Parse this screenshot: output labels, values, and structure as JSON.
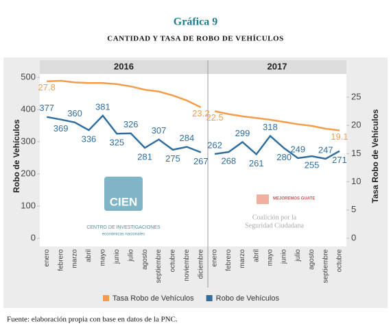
{
  "chart_data": {
    "type": "line",
    "title": "Gráfica 9",
    "subtitle": "CANTIDAD Y TASA DE ROBO DE VEHÍCULOS",
    "ylabel": "Robo de Vehículos",
    "y2label": "Tasa Robo de Vehículos",
    "ylim": [
      0,
      500
    ],
    "yticks": [
      0,
      100,
      200,
      300,
      400,
      500
    ],
    "y2lim": [
      0,
      28.5
    ],
    "y2ticks": [
      0,
      5,
      10,
      15,
      20,
      25
    ],
    "panels": [
      {
        "title": "2016",
        "categories": [
          "enero",
          "febrero",
          "marzo",
          "abril",
          "mayo",
          "junio",
          "julio",
          "agosto",
          "septiembre",
          "octubre",
          "noviembre",
          "diciembre"
        ],
        "series": [
          {
            "name": "Tasa Robo de Vehículos",
            "color": "#f39c4a",
            "axis": "y2",
            "values": [
              27.8,
              27.9,
              27.6,
              27.5,
              27.5,
              27.3,
              26.9,
              26.3,
              26.0,
              25.3,
              24.4,
              23.2
            ],
            "value_labels": [
              "27.8",
              null,
              null,
              null,
              null,
              null,
              null,
              null,
              null,
              null,
              null,
              "23.2"
            ]
          },
          {
            "name": "Robo de Vehículos",
            "color": "#2f6e9e",
            "values": [
              377,
              369,
              360,
              336,
              381,
              325,
              326,
              281,
              307,
              275,
              284,
              267
            ]
          }
        ]
      },
      {
        "title": "2017",
        "categories": [
          "enero",
          "febrero",
          "marzo",
          "abril",
          "mayo",
          "junio",
          "julio",
          "agosto",
          "septiembre",
          "octubre"
        ],
        "series": [
          {
            "name": "Tasa Robo de Vehículos",
            "color": "#f39c4a",
            "axis": "y2",
            "values": [
              22.5,
              22.0,
              21.6,
              21.3,
              21.0,
              20.6,
              20.2,
              19.9,
              19.4,
              19.1
            ],
            "value_labels": [
              "22.5",
              null,
              null,
              null,
              null,
              null,
              null,
              null,
              null,
              "19.1"
            ]
          },
          {
            "name": "Robo de Vehículos",
            "color": "#2f6e9e",
            "values": [
              262,
              268,
              299,
              261,
              318,
              280,
              249,
              255,
              247,
              271
            ]
          }
        ]
      }
    ]
  },
  "logos": {
    "cien": "CIEN",
    "cien_line1": "CENTRO DE INVESTIGACIONES",
    "cien_line2": "económicas nacionales",
    "mg": "MEJOREMOS GUATE",
    "coal_line1": "Coalición por la",
    "coal_line2": "Seguridad Ciudadana"
  },
  "footnote": "Fuente: elaboración propia con base en datos de la PNC."
}
